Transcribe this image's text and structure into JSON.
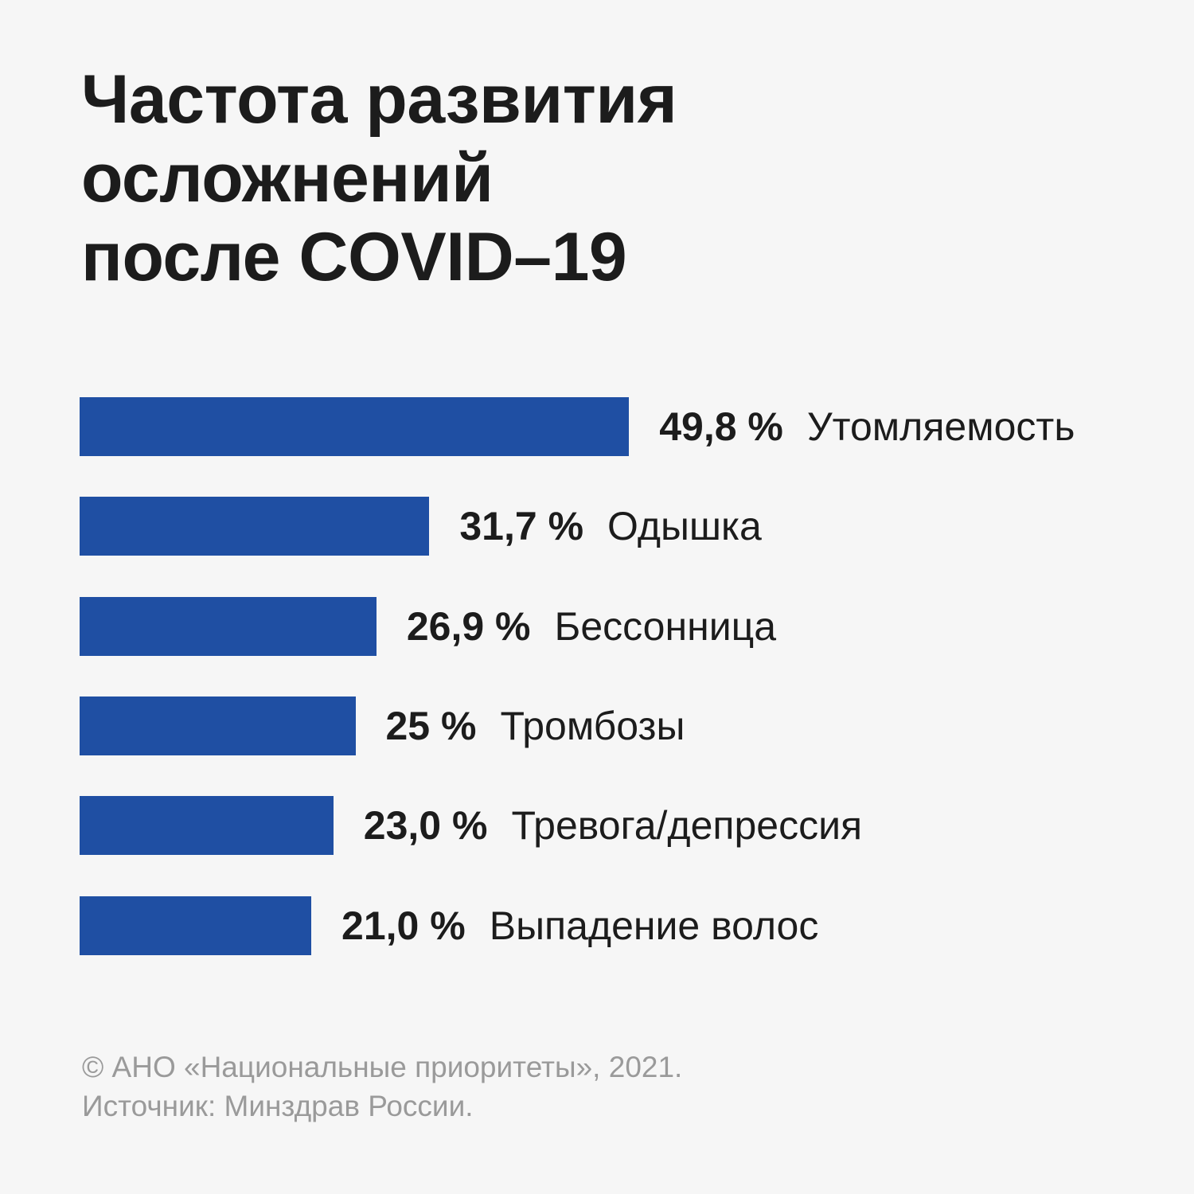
{
  "chart_data": {
    "type": "bar",
    "orientation": "horizontal",
    "title": [
      "Частота развития",
      "осложнений",
      "после COVID–19"
    ],
    "categories": [
      "Утомляемость",
      "Одышка",
      "Бессонница",
      "Тромбозы",
      "Тревога/депрессия",
      "Выпадение волос"
    ],
    "values": [
      49.8,
      31.7,
      26.9,
      25,
      23.0,
      21.0
    ],
    "value_labels": [
      "49,8 %",
      "31,7 %",
      "26,9 %",
      "25 %",
      "23,0 %",
      "21,0 %"
    ],
    "unit": "%",
    "grid": false,
    "axes_visible": false,
    "bar_color": "#1f4fa3"
  },
  "footer": {
    "copyright": "© АНО «Национальные приоритеты», 2021.",
    "source": "Источник: Минздрав России."
  }
}
